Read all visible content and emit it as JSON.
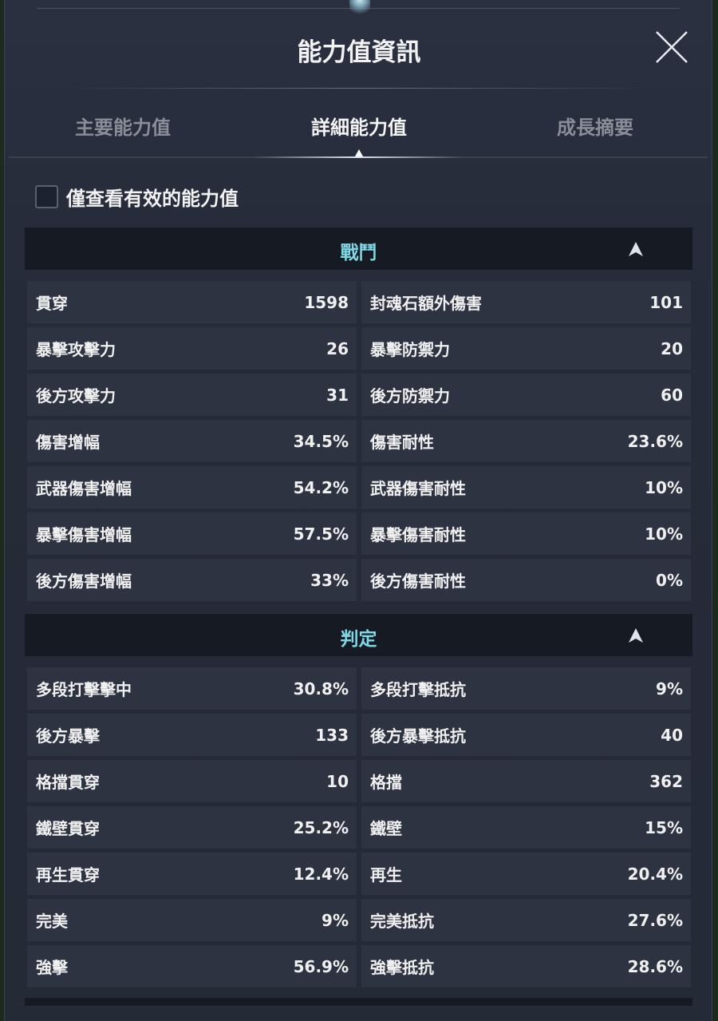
{
  "title": "能力值資訊",
  "tabs": [
    {
      "label": "主要能力值"
    },
    {
      "label": "詳細能力值"
    },
    {
      "label": "成長摘要"
    }
  ],
  "active_tab": "詳細能力值",
  "filter_checkbox": {
    "label": "僅查看有效的能力值",
    "checked": false
  },
  "accent_color": "#7fd8e6",
  "sections": [
    {
      "name": "戰鬥",
      "expanded": true,
      "rows": [
        [
          {
            "label": "貫穿",
            "value": "1598"
          },
          {
            "label": "封魂石額外傷害",
            "value": "101"
          }
        ],
        [
          {
            "label": "暴擊攻擊力",
            "value": "26"
          },
          {
            "label": "暴擊防禦力",
            "value": "20"
          }
        ],
        [
          {
            "label": "後方攻擊力",
            "value": "31"
          },
          {
            "label": "後方防禦力",
            "value": "60"
          }
        ],
        [
          {
            "label": "傷害增幅",
            "value": "34.5%"
          },
          {
            "label": "傷害耐性",
            "value": "23.6%"
          }
        ],
        [
          {
            "label": "武器傷害增幅",
            "value": "54.2%"
          },
          {
            "label": "武器傷害耐性",
            "value": "10%"
          }
        ],
        [
          {
            "label": "暴擊傷害增幅",
            "value": "57.5%"
          },
          {
            "label": "暴擊傷害耐性",
            "value": "10%"
          }
        ],
        [
          {
            "label": "後方傷害增幅",
            "value": "33%"
          },
          {
            "label": "後方傷害耐性",
            "value": "0%"
          }
        ]
      ]
    },
    {
      "name": "判定",
      "expanded": true,
      "rows": [
        [
          {
            "label": "多段打擊擊中",
            "value": "30.8%"
          },
          {
            "label": "多段打擊抵抗",
            "value": "9%"
          }
        ],
        [
          {
            "label": "後方暴擊",
            "value": "133"
          },
          {
            "label": "後方暴擊抵抗",
            "value": "40"
          }
        ],
        [
          {
            "label": "格擋貫穿",
            "value": "10"
          },
          {
            "label": "格擋",
            "value": "362"
          }
        ],
        [
          {
            "label": "鐵壁貫穿",
            "value": "25.2%"
          },
          {
            "label": "鐵壁",
            "value": "15%"
          }
        ],
        [
          {
            "label": "再生貫穿",
            "value": "12.4%"
          },
          {
            "label": "再生",
            "value": "20.4%"
          }
        ],
        [
          {
            "label": "完美",
            "value": "9%"
          },
          {
            "label": "完美抵抗",
            "value": "27.6%"
          }
        ],
        [
          {
            "label": "強擊",
            "value": "56.9%"
          },
          {
            "label": "強擊抵抗",
            "value": "28.6%"
          }
        ]
      ]
    }
  ]
}
